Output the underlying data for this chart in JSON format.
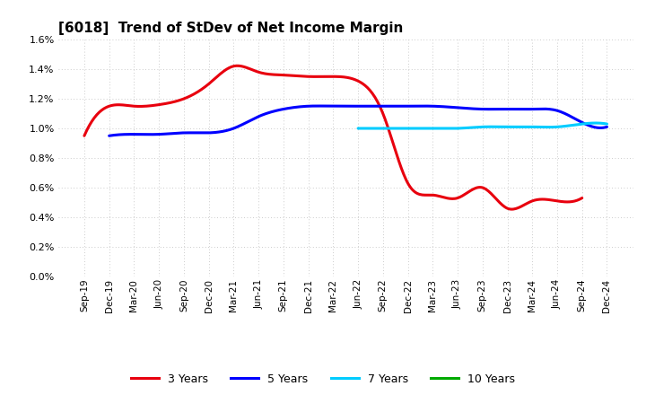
{
  "title": "[6018]  Trend of StDev of Net Income Margin",
  "x_labels": [
    "Sep-19",
    "Dec-19",
    "Mar-20",
    "Jun-20",
    "Sep-20",
    "Dec-20",
    "Mar-21",
    "Jun-21",
    "Sep-21",
    "Dec-21",
    "Mar-22",
    "Jun-22",
    "Sep-22",
    "Dec-22",
    "Mar-23",
    "Jun-23",
    "Sep-23",
    "Dec-23",
    "Mar-24",
    "Jun-24",
    "Sep-24",
    "Dec-24"
  ],
  "series_3y": [
    0.0095,
    0.0115,
    0.0115,
    0.0116,
    0.012,
    0.013,
    0.0142,
    0.0138,
    0.0136,
    0.0135,
    0.0135,
    0.0132,
    0.011,
    0.0063,
    0.0055,
    0.0053,
    0.006,
    0.0046,
    0.0051,
    0.0051,
    0.0053,
    null
  ],
  "series_5y": [
    null,
    0.0095,
    0.0096,
    0.0096,
    0.0097,
    0.0097,
    0.01,
    0.0108,
    0.0113,
    0.0115,
    0.0115,
    0.0115,
    0.0115,
    0.0115,
    0.0115,
    0.0114,
    0.0113,
    0.0113,
    0.0113,
    0.0112,
    0.0104,
    0.0101
  ],
  "series_7y": [
    null,
    null,
    null,
    null,
    null,
    null,
    null,
    null,
    null,
    null,
    null,
    0.01,
    0.01,
    0.01,
    0.01,
    0.01,
    0.0101,
    0.0101,
    0.0101,
    0.0101,
    0.0103,
    0.0103
  ],
  "series_10y": [
    null,
    null,
    null,
    null,
    null,
    null,
    null,
    null,
    null,
    null,
    null,
    null,
    null,
    null,
    null,
    null,
    null,
    null,
    null,
    null,
    null,
    null
  ],
  "color_3y": "#e8000e",
  "color_5y": "#0000ff",
  "color_7y": "#00ccff",
  "color_10y": "#00aa00",
  "ylim_max": 0.016,
  "yticks": [
    0.0,
    0.002,
    0.004,
    0.006,
    0.008,
    0.01,
    0.012,
    0.014,
    0.016
  ],
  "background_color": "#ffffff",
  "grid_color": "#bbbbbb",
  "linewidth": 2.2
}
